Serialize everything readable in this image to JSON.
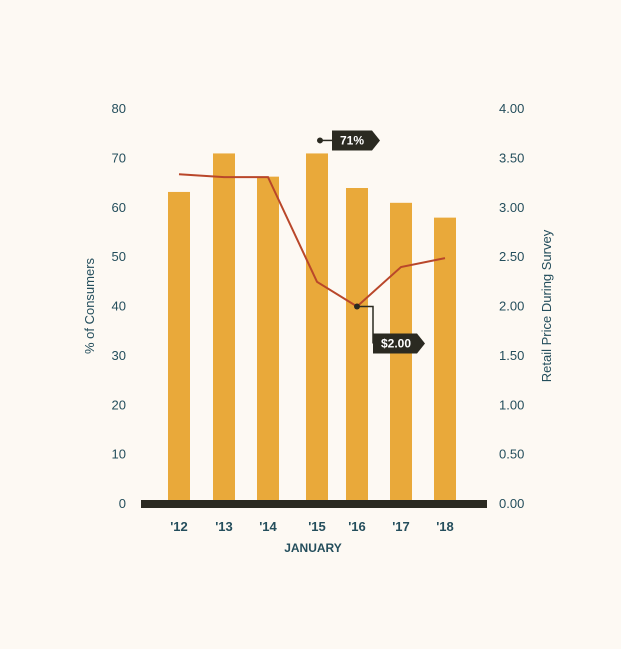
{
  "chart_data": {
    "type": "bar",
    "categories": [
      "'12",
      "'13",
      "'14",
      "'15",
      "'16",
      "'17",
      "'18"
    ],
    "series": [
      {
        "values": [
          63.2,
          71,
          66.3,
          71,
          64,
          61,
          58
        ],
        "axis": "left",
        "type": "bar",
        "color": "#e9a93a"
      },
      {
        "values": [
          3.34,
          3.31,
          3.31,
          2.25,
          2.0,
          2.4,
          2.49
        ],
        "axis": "right",
        "type": "line",
        "color": "#b9472a"
      }
    ],
    "xlabel": "JANUARY",
    "ylabel": "% of Consumers",
    "y2label": "Retail Price During Survey",
    "ylim": [
      0,
      80
    ],
    "y2lim": [
      0,
      4
    ],
    "yticks": [
      "0",
      "10",
      "20",
      "30",
      "40",
      "50",
      "60",
      "70",
      "80"
    ],
    "y2ticks": [
      "0.00",
      "0.50",
      "1.00",
      "1.50",
      "2.00",
      "2.50",
      "3.00",
      "3.50",
      "4.00"
    ],
    "grid": false,
    "legend": "none",
    "annotations": [
      {
        "text": "71%",
        "category": "'15",
        "series": 0
      },
      {
        "text": "$2.00",
        "category": "'16",
        "series": 1
      }
    ],
    "baseline_color": "#2b2a21",
    "callout_color": "#2b2a21"
  }
}
